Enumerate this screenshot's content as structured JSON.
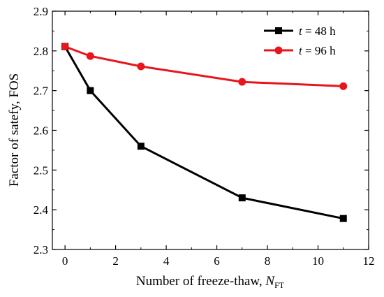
{
  "chart_data": {
    "type": "line",
    "xlabel": "Number of freeze-thaw, ",
    "xlabel_var": "N",
    "xlabel_sub": "FT",
    "ylabel": "Factor of satefy, FOS",
    "xlim": [
      -0.5,
      12
    ],
    "ylim": [
      2.3,
      2.9
    ],
    "xticks": [
      0,
      2,
      4,
      6,
      8,
      10,
      12
    ],
    "yticks": [
      2.3,
      2.4,
      2.5,
      2.6,
      2.7,
      2.8,
      2.9
    ],
    "xtick_labels": [
      "0",
      "2",
      "4",
      "6",
      "8",
      "10",
      "12"
    ],
    "ytick_labels": [
      "2.3",
      "2.4",
      "2.5",
      "2.6",
      "2.7",
      "2.8",
      "2.9"
    ],
    "legend_position": "top-right",
    "series": [
      {
        "name": "t = 48 h",
        "name_var": "t",
        "name_rest": " = 48 h",
        "color": "#000000",
        "marker": "square",
        "x": [
          0,
          1,
          3,
          7,
          11
        ],
        "values": [
          2.811,
          2.7,
          2.56,
          2.43,
          2.378
        ]
      },
      {
        "name": "t = 96 h",
        "name_var": "t",
        "name_rest": " = 96 h",
        "color": "#e8161c",
        "marker": "circle",
        "x": [
          0,
          1,
          3,
          7,
          11
        ],
        "values": [
          2.811,
          2.787,
          2.761,
          2.722,
          2.711
        ]
      }
    ]
  }
}
